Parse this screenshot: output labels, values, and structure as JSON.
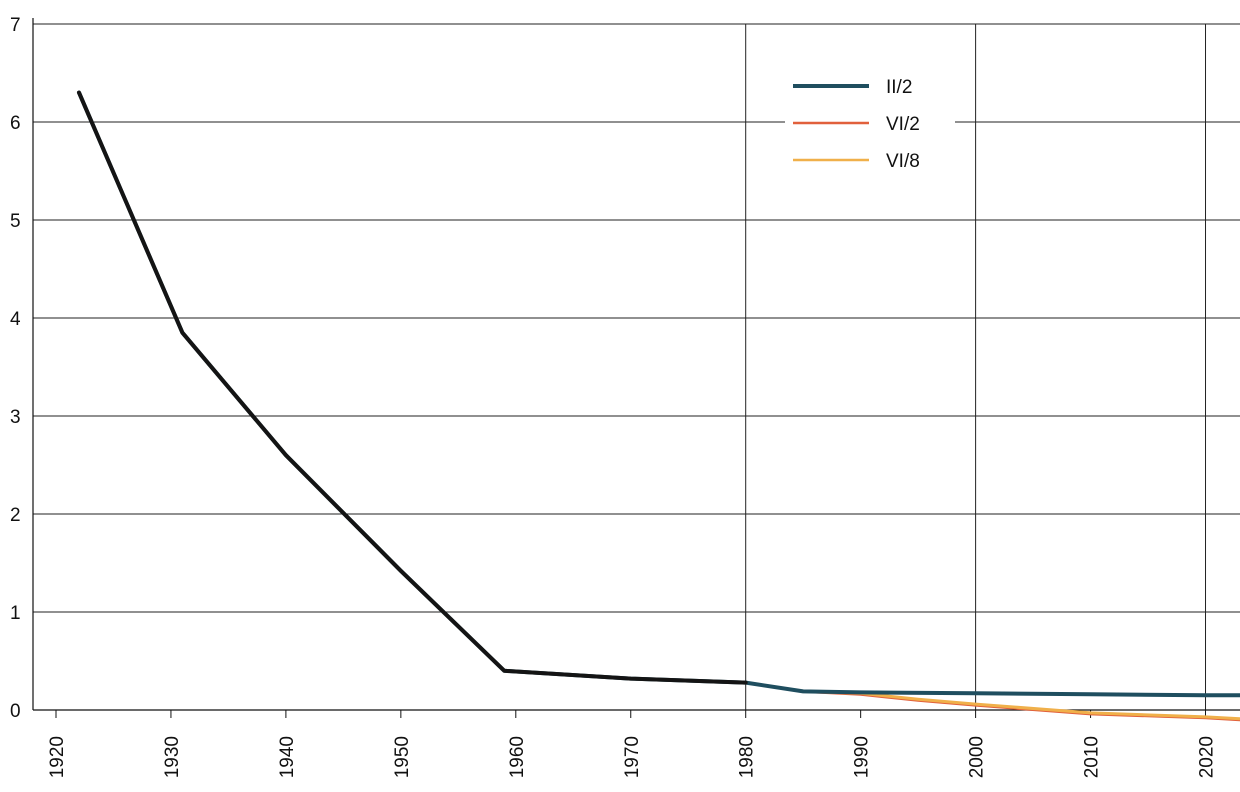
{
  "chart_data": {
    "type": "line",
    "title": "",
    "xlabel": "",
    "ylabel": "",
    "xlim": [
      1918,
      2023
    ],
    "ylim": [
      0,
      7
    ],
    "grid": true,
    "legend_position": "top-right",
    "x_ticks": [
      1920,
      1930,
      1940,
      1950,
      1960,
      1970,
      1980,
      1990,
      2000,
      2010,
      2020
    ],
    "y_ticks": [
      0,
      1,
      2,
      3,
      4,
      5,
      6,
      7
    ],
    "series": [
      {
        "name": "II/2",
        "color": "#1f4e5f",
        "points": [
          [
            1922,
            6.3
          ],
          [
            1931,
            3.85
          ],
          [
            1940,
            2.6
          ],
          [
            1950,
            1.42
          ],
          [
            1959,
            0.4
          ],
          [
            1970,
            0.32
          ],
          [
            1980,
            0.28
          ],
          [
            1985,
            0.19
          ],
          [
            1990,
            0.18
          ],
          [
            2000,
            0.17
          ],
          [
            2010,
            0.16
          ],
          [
            2020,
            0.15
          ],
          [
            2023,
            0.15
          ]
        ]
      },
      {
        "name": "VI/2",
        "color": "#e1603c",
        "points": [
          [
            1985,
            0.19
          ],
          [
            1990,
            0.16
          ],
          [
            1995,
            0.1
          ],
          [
            2000,
            0.05
          ],
          [
            2010,
            -0.04
          ],
          [
            2020,
            -0.08
          ],
          [
            2023,
            -0.1
          ]
        ]
      },
      {
        "name": "VI/8",
        "color": "#f0b04a",
        "points": [
          [
            1985,
            0.19
          ],
          [
            1990,
            0.17
          ],
          [
            1995,
            0.11
          ],
          [
            2000,
            0.06
          ],
          [
            2010,
            -0.03
          ],
          [
            2020,
            -0.07
          ],
          [
            2023,
            -0.09
          ]
        ]
      }
    ]
  }
}
